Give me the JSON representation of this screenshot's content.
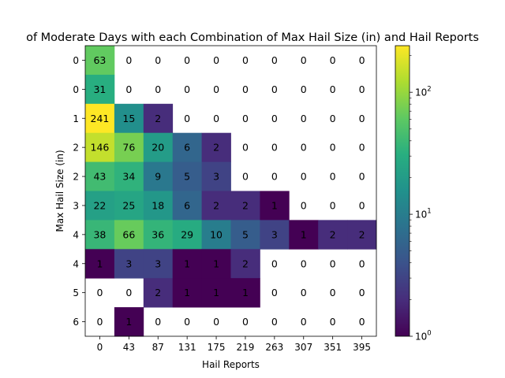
{
  "chart_data": {
    "type": "heatmap",
    "title": "of Moderate Days with each Combination of Max Hail Size (in) and Hail Reports",
    "xlabel": "Hail Reports",
    "ylabel": "Max Hail Size (in)",
    "x_categories": [
      "0",
      "43",
      "87",
      "131",
      "175",
      "219",
      "263",
      "307",
      "351",
      "395"
    ],
    "y_categories": [
      "0",
      "0",
      "1",
      "2",
      "2",
      "3",
      "4",
      "4",
      "5",
      "6"
    ],
    "values": [
      [
        63,
        0,
        0,
        0,
        0,
        0,
        0,
        0,
        0,
        0
      ],
      [
        31,
        0,
        0,
        0,
        0,
        0,
        0,
        0,
        0,
        0
      ],
      [
        241,
        15,
        2,
        0,
        0,
        0,
        0,
        0,
        0,
        0
      ],
      [
        146,
        76,
        20,
        6,
        2,
        0,
        0,
        0,
        0,
        0
      ],
      [
        43,
        34,
        9,
        5,
        3,
        0,
        0,
        0,
        0,
        0
      ],
      [
        22,
        25,
        18,
        6,
        2,
        2,
        1,
        0,
        0,
        0
      ],
      [
        38,
        66,
        36,
        29,
        10,
        5,
        3,
        1,
        2,
        2
      ],
      [
        1,
        3,
        3,
        1,
        1,
        2,
        0,
        0,
        0,
        0
      ],
      [
        0,
        0,
        2,
        1,
        1,
        1,
        0,
        0,
        0,
        0
      ],
      [
        0,
        1,
        0,
        0,
        0,
        0,
        0,
        0,
        0,
        0
      ]
    ],
    "colorscale": "viridis",
    "color_scale_type": "log",
    "color_range": [
      1,
      241
    ],
    "colorbar_ticks": [
      {
        "base": "10",
        "exp": "0",
        "value": 1
      },
      {
        "base": "10",
        "exp": "1",
        "value": 10
      },
      {
        "base": "10",
        "exp": "2",
        "value": 100
      }
    ],
    "zero_cells": "blank",
    "grid": false
  }
}
